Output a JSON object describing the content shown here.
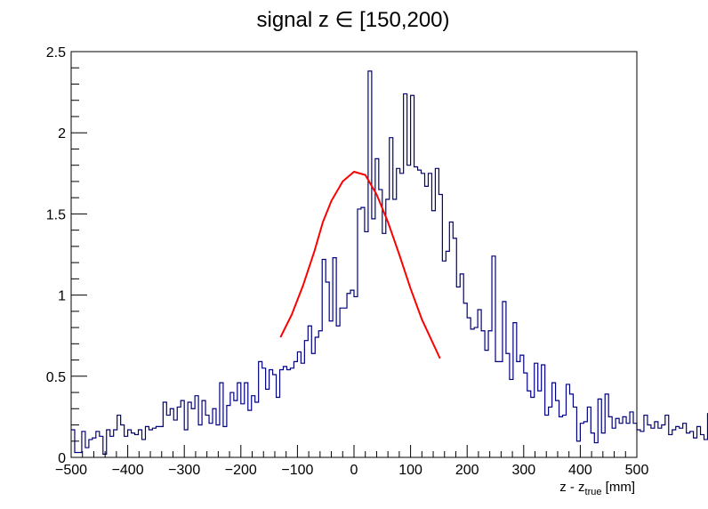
{
  "chart_data": {
    "type": "histogram",
    "title": "signal z ∈ [150,200)",
    "xlabel": {
      "base": "z - z",
      "sub": "true",
      "unit": " [mm]"
    },
    "ylabel": "",
    "xlim": [
      -500,
      500
    ],
    "ylim": [
      0,
      2.5
    ],
    "x_ticks": [
      -500,
      -400,
      -300,
      -200,
      -100,
      0,
      100,
      200,
      300,
      400,
      500
    ],
    "x_tick_labels": [
      "−500",
      "−400",
      "−300",
      "−200",
      "−100",
      "0",
      "100",
      "200",
      "300",
      "400",
      "500"
    ],
    "y_ticks": [
      0,
      0.5,
      1,
      1.5,
      2,
      2.5
    ],
    "y_tick_labels": [
      "0",
      "0.5",
      "1",
      "1.5",
      "2",
      "2.5"
    ],
    "grid": false,
    "legend": "none",
    "bin_width": 6.25,
    "series": [
      {
        "style": "histogram-step",
        "color": "#000080",
        "x_start": -500,
        "values": [
          0.17,
          0.03,
          0.03,
          0.16,
          0.06,
          0.11,
          0.12,
          0.16,
          0.13,
          0.02,
          0.17,
          0.13,
          0.17,
          0.26,
          0.2,
          0.13,
          0.17,
          0.15,
          0.14,
          0.17,
          0.11,
          0.19,
          0.17,
          0.18,
          0.19,
          0.19,
          0.34,
          0.26,
          0.3,
          0.23,
          0.31,
          0.35,
          0.17,
          0.34,
          0.3,
          0.38,
          0.2,
          0.35,
          0.26,
          0.21,
          0.3,
          0.2,
          0.46,
          0.19,
          0.32,
          0.4,
          0.35,
          0.46,
          0.33,
          0.46,
          0.29,
          0.38,
          0.34,
          0.59,
          0.55,
          0.42,
          0.54,
          0.51,
          0.37,
          0.54,
          0.56,
          0.54,
          0.55,
          0.59,
          0.65,
          0.58,
          0.72,
          0.81,
          0.64,
          0.74,
          0.78,
          1.22,
          1.08,
          0.84,
          1.23,
          0.81,
          0.92,
          0.92,
          1.01,
          1.03,
          0.99,
          1.53,
          1.54,
          1.39,
          2.38,
          1.47,
          1.84,
          1.65,
          1.38,
          1.59,
          1.97,
          1.59,
          1.78,
          1.75,
          2.24,
          1.8,
          2.23,
          1.79,
          1.77,
          1.75,
          1.67,
          1.75,
          1.52,
          1.78,
          1.62,
          1.21,
          1.27,
          1.45,
          1.35,
          1.05,
          1.13,
          0.95,
          0.86,
          0.79,
          0.8,
          0.91,
          0.78,
          0.66,
          0.78,
          1.24,
          0.59,
          0.59,
          0.96,
          0.64,
          0.48,
          0.83,
          0.59,
          0.63,
          0.52,
          0.41,
          0.37,
          0.58,
          0.41,
          0.57,
          0.26,
          0.31,
          0.46,
          0.35,
          0.25,
          0.26,
          0.45,
          0.39,
          0.31,
          0.1,
          0.21,
          0.22,
          0.31,
          0.15,
          0.09,
          0.36,
          0.15,
          0.39,
          0.25,
          0.18,
          0.24,
          0.21,
          0.25,
          0.21,
          0.28,
          0.21,
          0.17,
          0.16,
          0.26,
          0.2,
          0.18,
          0.22,
          0.18,
          0.2,
          0.26,
          0.14,
          0.17,
          0.19,
          0.18,
          0.21,
          0.15,
          0.16,
          0.12,
          0.19,
          0.14,
          0.11,
          0.27,
          0.05
        ]
      },
      {
        "style": "fit-line",
        "color": "#ff0000",
        "points": [
          [
            -130,
            0.74
          ],
          [
            -110,
            0.88
          ],
          [
            -90,
            1.06
          ],
          [
            -70,
            1.27
          ],
          [
            -55,
            1.45
          ],
          [
            -40,
            1.58
          ],
          [
            -20,
            1.7
          ],
          [
            0,
            1.76
          ],
          [
            20,
            1.74
          ],
          [
            40,
            1.62
          ],
          [
            60,
            1.45
          ],
          [
            80,
            1.25
          ],
          [
            100,
            1.04
          ],
          [
            120,
            0.85
          ],
          [
            140,
            0.7
          ],
          [
            152,
            0.61
          ]
        ]
      }
    ]
  }
}
